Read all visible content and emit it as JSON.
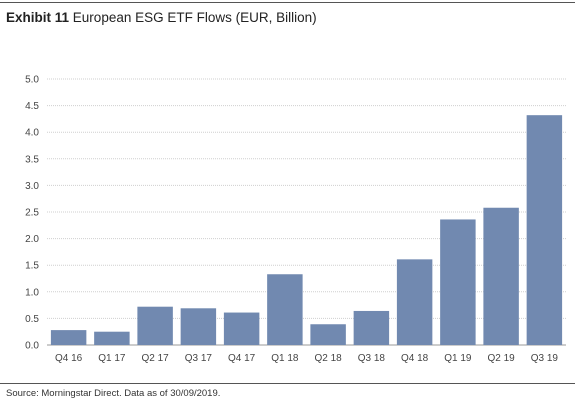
{
  "title": {
    "exhibit": "Exhibit 11",
    "text": "European ESG ETF Flows (EUR, Billion)"
  },
  "source": "Source: Morningstar Direct. Data as of 30/09/2019.",
  "chart_data": {
    "type": "bar",
    "title": "European ESG ETF Flows (EUR, Billion)",
    "xlabel": "",
    "ylabel": "",
    "categories": [
      "Q4 16",
      "Q1 17",
      "Q2 17",
      "Q3 17",
      "Q4 17",
      "Q1 18",
      "Q2 18",
      "Q3 18",
      "Q4 18",
      "Q1 19",
      "Q2 19",
      "Q3 19"
    ],
    "values": [
      0.28,
      0.25,
      0.72,
      0.69,
      0.61,
      1.33,
      0.39,
      0.64,
      1.61,
      2.36,
      2.58,
      4.32
    ],
    "ylim": [
      0,
      5
    ],
    "yticks": [
      "0.0",
      "0.5",
      "1.0",
      "1.5",
      "2.0",
      "2.5",
      "3.0",
      "3.5",
      "4.0",
      "4.5",
      "5.0"
    ],
    "grid": true,
    "bar_color": "#7189b0",
    "grid_color": "#cfcfcf"
  }
}
